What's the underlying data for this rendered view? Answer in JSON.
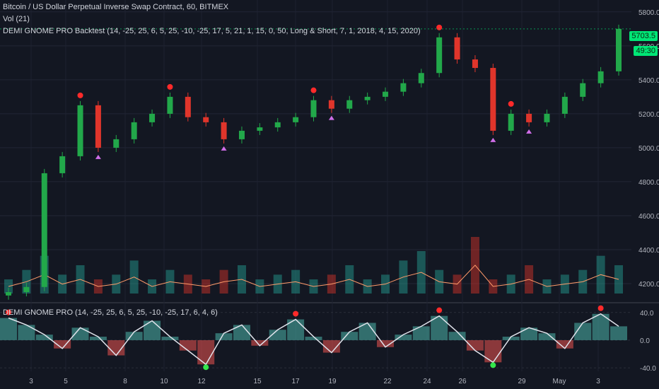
{
  "title": "Bitcoin / US Dollar Perpetual Inverse Swap Contract, 60, BITMEX",
  "volume_legend": "Vol (21)",
  "strategy_legend": "DEMI GNOME PRO Backtest (14, -25, 25, 6, 5, 25, -10, -25, 17, 5, 21, 1, 15, 0, 50, Long & Short, 7, 1, 2018, 4, 15, 2020)",
  "oscillator_legend": "DEMI GNOME PRO (14, -25, 25, 6, 5, 25, -10, -25, 17, 6, 4, 6)",
  "current_price_label": "5703.5",
  "countdown_label": "49:30",
  "last_line_label": "5800.0",
  "colors": {
    "background": "#131722",
    "up": "#26a69a",
    "candle_up": "#22a84a",
    "candle_down": "#e0352b",
    "signal_up": "#d06ee8",
    "signal_short": "#ff2a2a",
    "osc_fill_pos": "#4db6ac",
    "osc_fill_neg": "#ef5350",
    "osc_line": "#e0e3eb",
    "ma_volume": "#ff9b6a",
    "price_box": "#00e676"
  },
  "chart_data": [
    {
      "type": "line",
      "name": "price",
      "title": "Bitcoin / US Dollar Perpetual Inverse Swap Contract, 60, BITMEX",
      "y_ticks": [
        "5800.0",
        "5600.0",
        "5400.0",
        "5200.0",
        "5000.0",
        "4800.0",
        "4600.0",
        "4400.0",
        "4200.0"
      ],
      "ylim": [
        4100,
        5870
      ],
      "x_ticks": [
        "3",
        "5",
        "8",
        "10",
        "12",
        "15",
        "17",
        "19",
        "22",
        "24",
        "26",
        "29",
        "May",
        "3"
      ],
      "x": [
        0,
        1,
        2,
        3,
        4,
        5,
        6,
        7,
        8,
        9,
        10,
        11,
        12,
        13,
        14,
        15,
        16,
        17,
        18,
        19,
        20,
        21,
        22,
        23,
        24,
        25,
        26,
        27,
        28,
        29,
        30,
        31,
        32,
        33,
        34
      ],
      "values": [
        4150,
        4180,
        4850,
        4950,
        5250,
        5000,
        5050,
        5150,
        5200,
        5300,
        5180,
        5150,
        5050,
        5100,
        5120,
        5150,
        5180,
        5280,
        5230,
        5280,
        5300,
        5330,
        5380,
        5440,
        5650,
        5520,
        5470,
        5100,
        5200,
        5150,
        5200,
        5300,
        5380,
        5450,
        5700
      ],
      "grid": true
    },
    {
      "type": "bar",
      "name": "volume",
      "title": "Vol (21)",
      "values": [
        3,
        5,
        8,
        4,
        6,
        3,
        4,
        7,
        3,
        5,
        4,
        3,
        5,
        6,
        3,
        4,
        5,
        3,
        4,
        6,
        3,
        4,
        7,
        9,
        5,
        4,
        12,
        3,
        4,
        6,
        3,
        4,
        5,
        8,
        6
      ]
    },
    {
      "type": "area",
      "name": "oscillator",
      "title": "DEMI GNOME PRO (14, -25, 25, 6, 5, 25, -10, -25, 17, 6, 4, 6)",
      "y_ticks": [
        "40.0",
        "0.0",
        "-40.0"
      ],
      "ylim": [
        -45,
        50
      ],
      "values": [
        32,
        22,
        8,
        -12,
        18,
        5,
        -22,
        12,
        28,
        5,
        -15,
        -35,
        10,
        22,
        -8,
        15,
        30,
        5,
        -18,
        12,
        25,
        -10,
        8,
        20,
        35,
        12,
        -15,
        -32,
        5,
        18,
        10,
        -12,
        25,
        38,
        20
      ]
    }
  ]
}
